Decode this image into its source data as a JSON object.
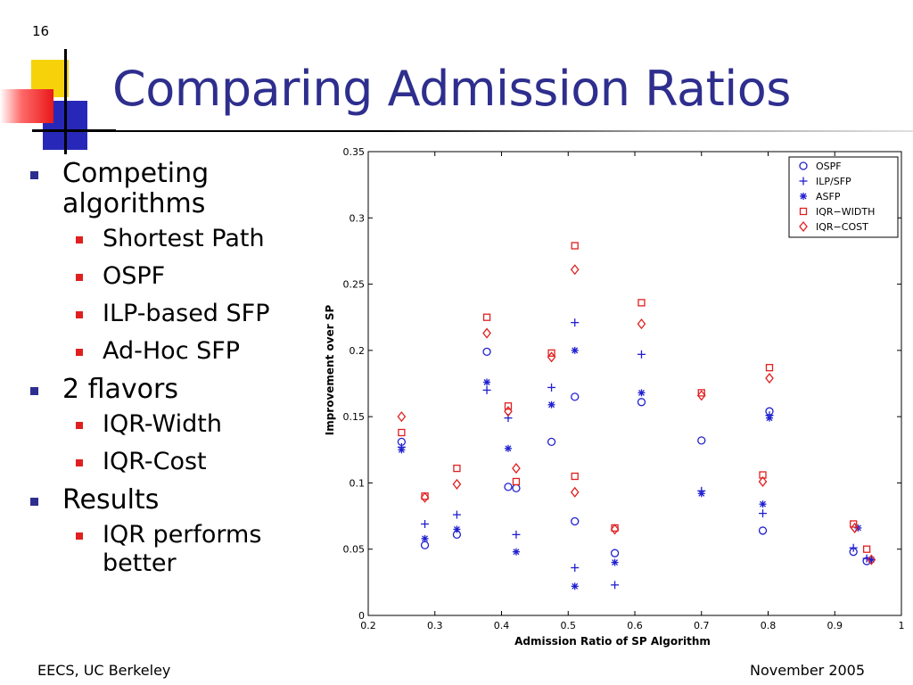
{
  "slide": {
    "number": "16",
    "title": "Comparing Admission Ratios",
    "footer_left": "EECS, UC Berkeley",
    "footer_right": "November 2005",
    "colors": {
      "title": "#2e2e8e",
      "bullet_level1": "#2e2e8e",
      "bullet_level2": "#e02020"
    }
  },
  "bullets": [
    {
      "text": "Competing algorithms",
      "children": [
        "Shortest Path",
        "OSPF",
        "ILP-based SFP",
        "Ad-Hoc SFP"
      ]
    },
    {
      "text": "2 flavors",
      "children": [
        "IQR-Width",
        "IQR-Cost"
      ]
    },
    {
      "text": "Results",
      "children": [
        "IQR performs better"
      ]
    }
  ],
  "chart_data": {
    "type": "scatter",
    "title": "",
    "xlabel": "Admission Ratio of SP Algorithm",
    "ylabel": "Improvement over SP",
    "xlim": [
      0.2,
      1.0
    ],
    "ylim": [
      0,
      0.35
    ],
    "xticks": [
      "0.2",
      "0.3",
      "0.4",
      "0.5",
      "0.6",
      "0.7",
      "0.8",
      "0.9",
      "1"
    ],
    "yticks": [
      "0",
      "0.05",
      "0.1",
      "0.15",
      "0.2",
      "0.25",
      "0.3",
      "0.35"
    ],
    "grid": false,
    "legend_position": "top-right",
    "series": [
      {
        "name": "OSPF",
        "marker": "circle",
        "color": "#2020d0",
        "points": [
          [
            0.25,
            0.131
          ],
          [
            0.285,
            0.053
          ],
          [
            0.333,
            0.061
          ],
          [
            0.378,
            0.199
          ],
          [
            0.41,
            0.097
          ],
          [
            0.422,
            0.096
          ],
          [
            0.475,
            0.131
          ],
          [
            0.51,
            0.071
          ],
          [
            0.51,
            0.165
          ],
          [
            0.57,
            0.047
          ],
          [
            0.61,
            0.161
          ],
          [
            0.7,
            0.132
          ],
          [
            0.792,
            0.064
          ],
          [
            0.802,
            0.154
          ],
          [
            0.928,
            0.048
          ],
          [
            0.948,
            0.041
          ]
        ]
      },
      {
        "name": "ILP/SFP",
        "marker": "plus",
        "color": "#2020d0",
        "points": [
          [
            0.25,
            0.127
          ],
          [
            0.285,
            0.069
          ],
          [
            0.333,
            0.076
          ],
          [
            0.378,
            0.17
          ],
          [
            0.41,
            0.149
          ],
          [
            0.422,
            0.061
          ],
          [
            0.475,
            0.172
          ],
          [
            0.51,
            0.221
          ],
          [
            0.51,
            0.036
          ],
          [
            0.57,
            0.023
          ],
          [
            0.61,
            0.197
          ],
          [
            0.7,
            0.094
          ],
          [
            0.792,
            0.077
          ],
          [
            0.802,
            0.151
          ],
          [
            0.928,
            0.051
          ],
          [
            0.948,
            0.043
          ]
        ]
      },
      {
        "name": "ASFP",
        "marker": "asterisk",
        "color": "#2020d0",
        "points": [
          [
            0.25,
            0.125
          ],
          [
            0.285,
            0.058
          ],
          [
            0.333,
            0.065
          ],
          [
            0.378,
            0.176
          ],
          [
            0.41,
            0.126
          ],
          [
            0.422,
            0.048
          ],
          [
            0.475,
            0.159
          ],
          [
            0.51,
            0.2
          ],
          [
            0.51,
            0.022
          ],
          [
            0.57,
            0.04
          ],
          [
            0.61,
            0.168
          ],
          [
            0.7,
            0.092
          ],
          [
            0.792,
            0.084
          ],
          [
            0.802,
            0.149
          ],
          [
            0.935,
            0.066
          ],
          [
            0.955,
            0.042
          ]
        ]
      },
      {
        "name": "IQR−WIDTH",
        "marker": "square",
        "color": "#e02020",
        "points": [
          [
            0.25,
            0.138
          ],
          [
            0.285,
            0.09
          ],
          [
            0.333,
            0.111
          ],
          [
            0.378,
            0.225
          ],
          [
            0.41,
            0.158
          ],
          [
            0.422,
            0.101
          ],
          [
            0.475,
            0.198
          ],
          [
            0.51,
            0.279
          ],
          [
            0.51,
            0.105
          ],
          [
            0.57,
            0.066
          ],
          [
            0.61,
            0.236
          ],
          [
            0.7,
            0.168
          ],
          [
            0.792,
            0.106
          ],
          [
            0.802,
            0.187
          ],
          [
            0.928,
            0.069
          ],
          [
            0.948,
            0.05
          ]
        ]
      },
      {
        "name": "IQR−COST",
        "marker": "diamond",
        "color": "#e02020",
        "points": [
          [
            0.25,
            0.15
          ],
          [
            0.285,
            0.089
          ],
          [
            0.333,
            0.099
          ],
          [
            0.378,
            0.213
          ],
          [
            0.41,
            0.154
          ],
          [
            0.422,
            0.111
          ],
          [
            0.475,
            0.195
          ],
          [
            0.51,
            0.261
          ],
          [
            0.51,
            0.093
          ],
          [
            0.57,
            0.065
          ],
          [
            0.61,
            0.22
          ],
          [
            0.7,
            0.166
          ],
          [
            0.792,
            0.101
          ],
          [
            0.802,
            0.179
          ],
          [
            0.93,
            0.066
          ],
          [
            0.955,
            0.042
          ]
        ]
      }
    ]
  }
}
